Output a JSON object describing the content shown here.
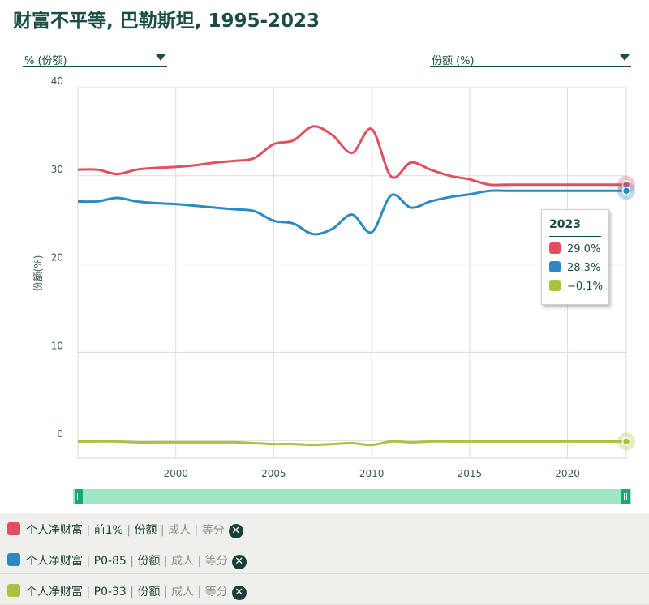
{
  "title": "财富不平等, 巴勒斯坦, 1995-2023",
  "dropdown_left": {
    "value": "% (份额)"
  },
  "dropdown_right": {
    "value": "份额 (%)"
  },
  "tooltip": {
    "year": "2023",
    "rows": [
      {
        "value": "29.0%",
        "color": "#e05060"
      },
      {
        "value": "28.3%",
        "color": "#2a8ac4"
      },
      {
        "value": "−0.1%",
        "color": "#a9c23f"
      }
    ]
  },
  "legend": [
    {
      "parts": [
        "个人净财富",
        "前1%",
        "份额"
      ],
      "muted": [
        "成人",
        "等分"
      ],
      "color": "#e05060"
    },
    {
      "parts": [
        "个人净财富",
        "P0-85",
        "份额"
      ],
      "muted": [
        "成人",
        "等分"
      ],
      "color": "#2a8ac4"
    },
    {
      "parts": [
        "个人净财富",
        "P0-33",
        "份额"
      ],
      "muted": [
        "成人",
        "等分"
      ],
      "color": "#a9c23f"
    }
  ],
  "icons": {
    "remove": "close-circle-icon",
    "caret": "caret-down-icon",
    "slider": "range-handle-icon"
  },
  "chart_data": {
    "type": "line",
    "title": "财富不平等, 巴勒斯坦, 1995-2023",
    "ylabel": "份额(%)",
    "xlim": [
      1995,
      2023
    ],
    "ylim": [
      -2,
      40
    ],
    "yticks": [
      0,
      10,
      20,
      30,
      40
    ],
    "xticks": [
      2000,
      2005,
      2010,
      2015,
      2020
    ],
    "grid": true,
    "x": [
      1995,
      1996,
      1997,
      1998,
      1999,
      2000,
      2001,
      2002,
      2003,
      2004,
      2005,
      2006,
      2007,
      2008,
      2009,
      2010,
      2011,
      2012,
      2013,
      2014,
      2015,
      2016,
      2017,
      2018,
      2019,
      2020,
      2021,
      2022,
      2023
    ],
    "series": [
      {
        "name": "个人净财富 | 前1% | 份额",
        "color": "#e05060",
        "values": [
          30.7,
          30.7,
          30.2,
          30.7,
          30.9,
          31.0,
          31.2,
          31.5,
          31.7,
          32.0,
          33.6,
          34.0,
          35.6,
          34.6,
          32.6,
          35.3,
          29.9,
          31.5,
          30.7,
          30.0,
          29.6,
          29.0,
          29.0,
          29.0,
          29.0,
          29.0,
          29.0,
          29.0,
          29.0
        ]
      },
      {
        "name": "个人净财富 | P0-85 | 份额",
        "color": "#2a8ac4",
        "values": [
          27.1,
          27.1,
          27.5,
          27.1,
          26.9,
          26.8,
          26.6,
          26.4,
          26.2,
          26.0,
          24.9,
          24.6,
          23.4,
          24.0,
          25.6,
          23.6,
          27.8,
          26.4,
          27.1,
          27.6,
          27.9,
          28.3,
          28.3,
          28.3,
          28.3,
          28.3,
          28.3,
          28.3,
          28.3
        ]
      },
      {
        "name": "个人净财富 | P0-33 | 份额",
        "color": "#a9c23f",
        "values": [
          -0.1,
          -0.1,
          -0.1,
          -0.2,
          -0.2,
          -0.2,
          -0.2,
          -0.2,
          -0.2,
          -0.3,
          -0.4,
          -0.4,
          -0.5,
          -0.4,
          -0.3,
          -0.5,
          -0.1,
          -0.2,
          -0.1,
          -0.1,
          -0.1,
          -0.1,
          -0.1,
          -0.1,
          -0.1,
          -0.1,
          -0.1,
          -0.1,
          -0.1
        ]
      }
    ]
  }
}
